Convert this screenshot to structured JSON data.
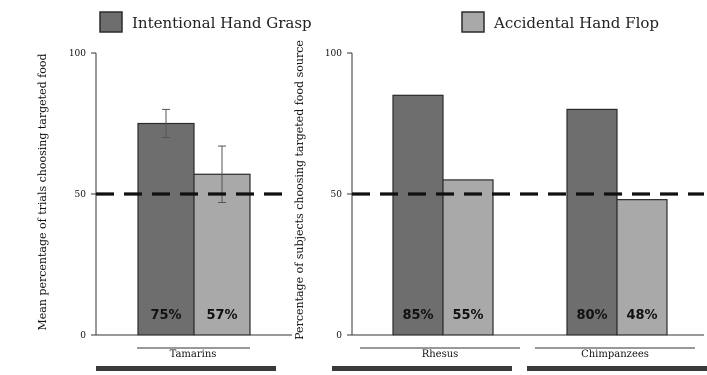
{
  "legend": [
    {
      "label": "Intentional Hand Grasp",
      "color": "#6e6e6e"
    },
    {
      "label": "Accidental Hand Flop",
      "color": "#a9a9a9"
    }
  ],
  "colors": {
    "border": "#2b2b2b",
    "axis": "#333333",
    "chance_line": "#111111",
    "error_bar": "#555555"
  },
  "chart_data": [
    {
      "type": "bar",
      "ylabel": "Mean percentage of trials choosing targeted food",
      "ylim": [
        0,
        100
      ],
      "yticks": [
        "0",
        "50",
        "100"
      ],
      "reference_line": 50,
      "categories": [
        "Tamarins"
      ],
      "series": [
        {
          "name": "Intentional Hand Grasp",
          "values": [
            75
          ],
          "labels": [
            "75%"
          ],
          "error": [
            [
              70,
              80
            ]
          ]
        },
        {
          "name": "Accidental Hand Flop",
          "values": [
            57
          ],
          "labels": [
            "57%"
          ],
          "error": [
            [
              47,
              67
            ]
          ]
        }
      ]
    },
    {
      "type": "bar",
      "ylabel": "Percentage of subjects choosing targeted food source",
      "ylim": [
        0,
        100
      ],
      "yticks": [
        "0",
        "50",
        "100"
      ],
      "reference_line": 50,
      "categories": [
        "Rhesus",
        "Chimpanzees"
      ],
      "series": [
        {
          "name": "Intentional Hand Grasp",
          "values": [
            85,
            80
          ],
          "labels": [
            "85%",
            "80%"
          ]
        },
        {
          "name": "Accidental Hand Flop",
          "values": [
            55,
            48
          ],
          "labels": [
            "55%",
            "48%"
          ]
        }
      ]
    }
  ]
}
